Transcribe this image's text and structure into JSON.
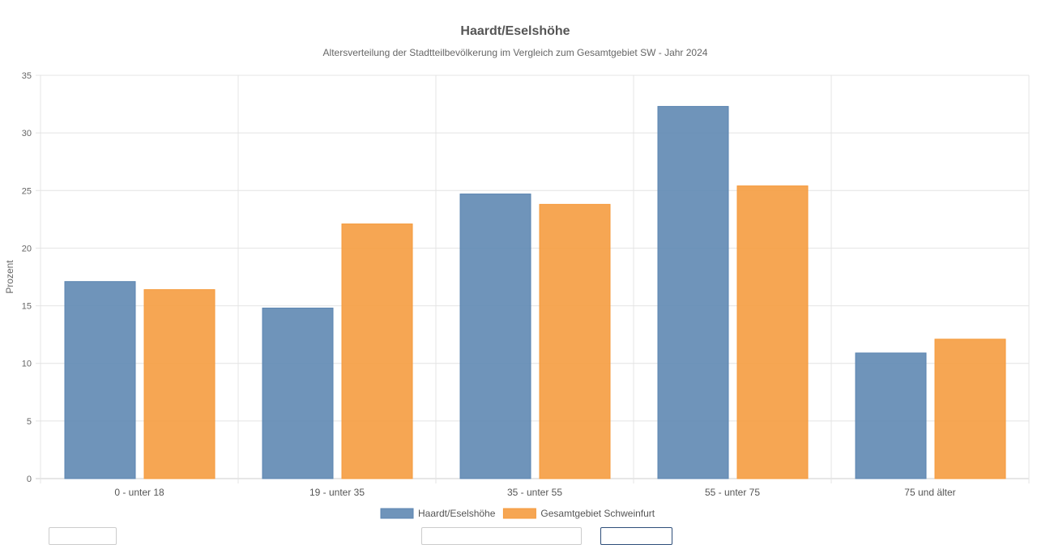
{
  "chart_data": {
    "type": "bar",
    "title": "Haardt/Eselshöhe",
    "subtitle": "Altersverteilung der Stadtteilbevölkerung im Vergleich zum Gesamtgebiet SW - Jahr 2024",
    "xlabel": "",
    "ylabel": "Prozent",
    "ylim": [
      0,
      35
    ],
    "yticks": [
      0,
      5,
      10,
      15,
      20,
      25,
      30,
      35
    ],
    "grid": true,
    "legend_position": "bottom",
    "categories": [
      "0 - unter 18",
      "19 - unter 35",
      "35 - unter 55",
      "55 - unter 75",
      "75 und älter"
    ],
    "series": [
      {
        "name": "Haardt/Eselshöhe",
        "color": "#5b85b1",
        "values": [
          17.1,
          14.8,
          24.7,
          32.3,
          10.9
        ]
      },
      {
        "name": "Gesamtgebiet Schweinfurt",
        "color": "#f59a3b",
        "values": [
          16.4,
          22.1,
          23.8,
          25.4,
          12.1
        ]
      }
    ]
  }
}
